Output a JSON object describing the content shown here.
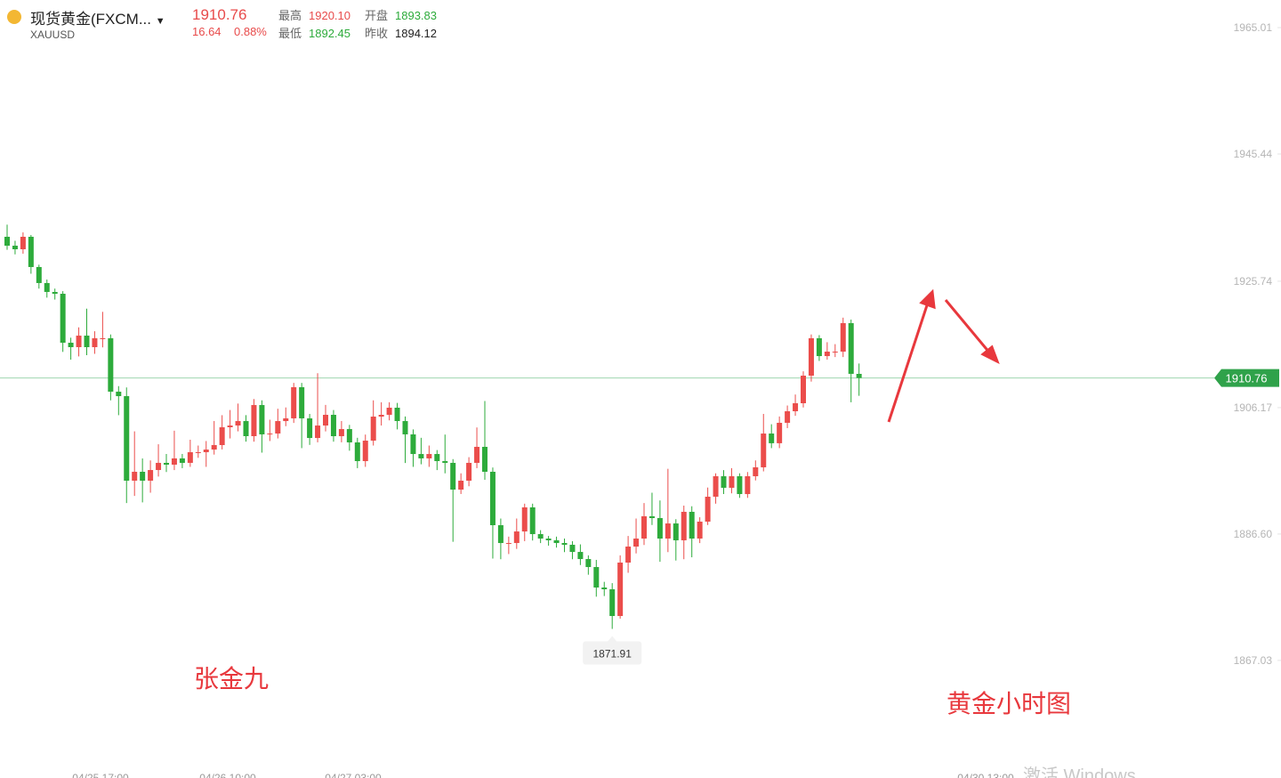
{
  "header": {
    "name": "现货黄金(FXCM...",
    "symbol": "XAUUSD",
    "price": "1910.76",
    "change": "16.64",
    "change_pct": "0.88%",
    "stats": [
      {
        "label": "最高",
        "value": "1920.10"
      },
      {
        "label": "开盘",
        "value": "1893.83"
      },
      {
        "label": "最低",
        "value": "1892.45"
      },
      {
        "label": "昨收",
        "value": "1894.12"
      }
    ]
  },
  "chart_data": {
    "type": "candlestick",
    "up_color": "#eb4d4b",
    "down_color": "#2dab3b",
    "ylim": [
      1848.83,
      1969.28
    ],
    "yticks": [
      1965.01,
      1945.44,
      1925.74,
      1906.17,
      {
        "value": 1886.6,
        "label": "1886.60"
      },
      1867.03
    ],
    "xticks": [
      "04/25 17:00",
      "04/26 10:00",
      "04/27 03:00",
      "04/30 13:00"
    ],
    "last_price": 1910.76,
    "annotations": [
      "张金九",
      "黄金小时图"
    ],
    "watermark": "激活 Windows",
    "open": [
      1932.62,
      1931.24,
      1930.69,
      1932.62,
      1927.94,
      1925.46,
      1924.08,
      1923.8,
      1916.22,
      1915.53,
      1917.32,
      1915.53,
      1916.91,
      1916.91,
      1908.64,
      1907.95,
      1894.86,
      1896.24,
      1894.86,
      1896.51,
      1897.62,
      1897.34,
      1898.31,
      1897.62,
      1899.27,
      1899.27,
      1899.68,
      1900.37,
      1903.13,
      1903.4,
      1904.09,
      1901.75,
      1906.57,
      1902.03,
      1902.16,
      1904.09,
      1904.51,
      1909.33,
      1904.51,
      1901.47,
      1903.4,
      1905.06,
      1901.75,
      1902.85,
      1900.79,
      1897.89,
      1901.06,
      1904.78,
      1905.06,
      1906.16,
      1904.09,
      1902.03,
      1898.99,
      1898.31,
      1898.99,
      1897.89,
      1897.62,
      1893.48,
      1894.86,
      1897.62,
      1900.1,
      1896.24,
      1887.97,
      1885.21,
      1885.21,
      1887.0,
      1890.73,
      1886.59,
      1885.9,
      1885.63,
      1885.21,
      1884.94,
      1883.83,
      1882.73,
      1881.49,
      1878.32,
      1878.05,
      1873.91,
      1882.18,
      1884.66,
      1885.9,
      1889.35,
      1889.07,
      1885.9,
      1888.24,
      1885.63,
      1890.04,
      1885.9,
      1888.52,
      1892.38,
      1895.55,
      1893.76,
      1895.55,
      1892.79,
      1895.55,
      1896.93,
      1902.16,
      1900.66,
      1903.82,
      1905.61,
      1906.85,
      1911.12,
      1916.91,
      1914.15,
      1914.84,
      1914.84,
      1919.25,
      1911.4
    ],
    "high": [
      1934.5,
      1932.0,
      1933.3,
      1932.9,
      1928.3,
      1926.0,
      1924.6,
      1924.2,
      1917.0,
      1918.6,
      1921.5,
      1918.0,
      1921.0,
      1917.5,
      1909.5,
      1909.3,
      1902.5,
      1898.3,
      1898.0,
      1900.5,
      1899.0,
      1902.6,
      1899.0,
      1901.2,
      1900.3,
      1901.0,
      1904.1,
      1905.0,
      1905.8,
      1906.8,
      1905.0,
      1907.5,
      1907.3,
      1904.3,
      1906.0,
      1906.2,
      1910.0,
      1910.0,
      1905.2,
      1911.5,
      1906.6,
      1905.8,
      1904.1,
      1903.5,
      1901.5,
      1902.0,
      1907.3,
      1907.0,
      1907.0,
      1906.9,
      1904.8,
      1902.8,
      1901.5,
      1900.3,
      1899.6,
      1902.0,
      1898.2,
      1896.0,
      1898.5,
      1903.1,
      1907.2,
      1896.9,
      1889.0,
      1886.2,
      1889.0,
      1891.3,
      1891.3,
      1887.2,
      1886.3,
      1886.2,
      1885.9,
      1885.5,
      1885.0,
      1883.3,
      1882.6,
      1879.2,
      1879.0,
      1883.3,
      1886.3,
      1889.0,
      1891.4,
      1893.0,
      1891.8,
      1896.7,
      1888.9,
      1891.0,
      1890.9,
      1889.2,
      1893.8,
      1896.0,
      1896.5,
      1896.8,
      1896.0,
      1896.2,
      1898.0,
      1905.2,
      1903.6,
      1904.8,
      1906.5,
      1908.2,
      1911.8,
      1917.5,
      1917.4,
      1916.3,
      1916.0,
      1920.1,
      1919.8,
      1913.0
    ],
    "low": [
      1930.6,
      1929.9,
      1930.0,
      1926.9,
      1924.6,
      1923.2,
      1922.9,
      1914.8,
      1913.6,
      1914.1,
      1914.3,
      1914.5,
      1915.5,
      1907.3,
      1905.0,
      1891.4,
      1892.5,
      1891.5,
      1893.0,
      1895.5,
      1896.2,
      1896.5,
      1896.8,
      1897.0,
      1898.4,
      1897.0,
      1898.9,
      1899.7,
      1901.4,
      1902.5,
      1900.9,
      1900.9,
      1899.2,
      1901.0,
      1901.4,
      1903.3,
      1903.8,
      1899.9,
      1900.4,
      1900.8,
      1902.5,
      1900.9,
      1900.8,
      1899.5,
      1896.8,
      1897.0,
      1900.3,
      1903.4,
      1904.2,
      1902.8,
      1897.6,
      1897.0,
      1897.4,
      1897.0,
      1896.5,
      1896.0,
      1885.4,
      1892.8,
      1894.0,
      1896.8,
      1895.0,
      1882.8,
      1882.7,
      1883.5,
      1884.3,
      1885.5,
      1885.6,
      1885.2,
      1884.8,
      1884.5,
      1883.8,
      1882.7,
      1881.8,
      1880.3,
      1876.9,
      1877.0,
      1871.91,
      1873.5,
      1880.6,
      1883.6,
      1884.9,
      1888.0,
      1882.3,
      1883.8,
      1882.5,
      1882.7,
      1883.0,
      1885.2,
      1888.0,
      1891.3,
      1892.8,
      1892.9,
      1892.2,
      1892.2,
      1894.9,
      1896.3,
      1899.9,
      1899.9,
      1903.0,
      1904.9,
      1906.2,
      1910.2,
      1913.4,
      1913.6,
      1914.0,
      1914.0,
      1907.0,
      1908.0
    ],
    "close": [
      1931.24,
      1930.69,
      1932.62,
      1927.94,
      1925.46,
      1924.08,
      1923.8,
      1916.22,
      1915.53,
      1917.32,
      1915.53,
      1916.91,
      1916.91,
      1908.64,
      1907.95,
      1894.86,
      1896.24,
      1894.86,
      1896.51,
      1897.62,
      1897.34,
      1898.31,
      1897.62,
      1899.27,
      1899.27,
      1899.68,
      1900.37,
      1903.13,
      1903.4,
      1904.09,
      1901.75,
      1906.57,
      1902.03,
      1902.16,
      1904.09,
      1904.51,
      1909.33,
      1904.51,
      1901.47,
      1903.4,
      1905.06,
      1901.75,
      1902.85,
      1900.79,
      1897.89,
      1901.06,
      1904.78,
      1905.06,
      1906.16,
      1904.09,
      1902.03,
      1898.99,
      1898.31,
      1898.99,
      1897.89,
      1897.62,
      1893.48,
      1894.86,
      1897.62,
      1900.1,
      1896.24,
      1887.97,
      1885.21,
      1885.21,
      1887.0,
      1890.73,
      1886.59,
      1885.9,
      1885.63,
      1885.21,
      1884.94,
      1883.83,
      1882.73,
      1881.49,
      1878.32,
      1878.05,
      1873.91,
      1882.18,
      1884.66,
      1885.9,
      1889.35,
      1889.07,
      1885.9,
      1888.24,
      1885.63,
      1890.04,
      1885.9,
      1888.52,
      1892.38,
      1895.55,
      1893.76,
      1895.55,
      1892.79,
      1895.55,
      1896.93,
      1902.16,
      1900.66,
      1903.82,
      1905.61,
      1906.85,
      1911.12,
      1916.91,
      1914.15,
      1914.84,
      1914.84,
      1919.25,
      1911.4,
      1910.76
    ]
  }
}
